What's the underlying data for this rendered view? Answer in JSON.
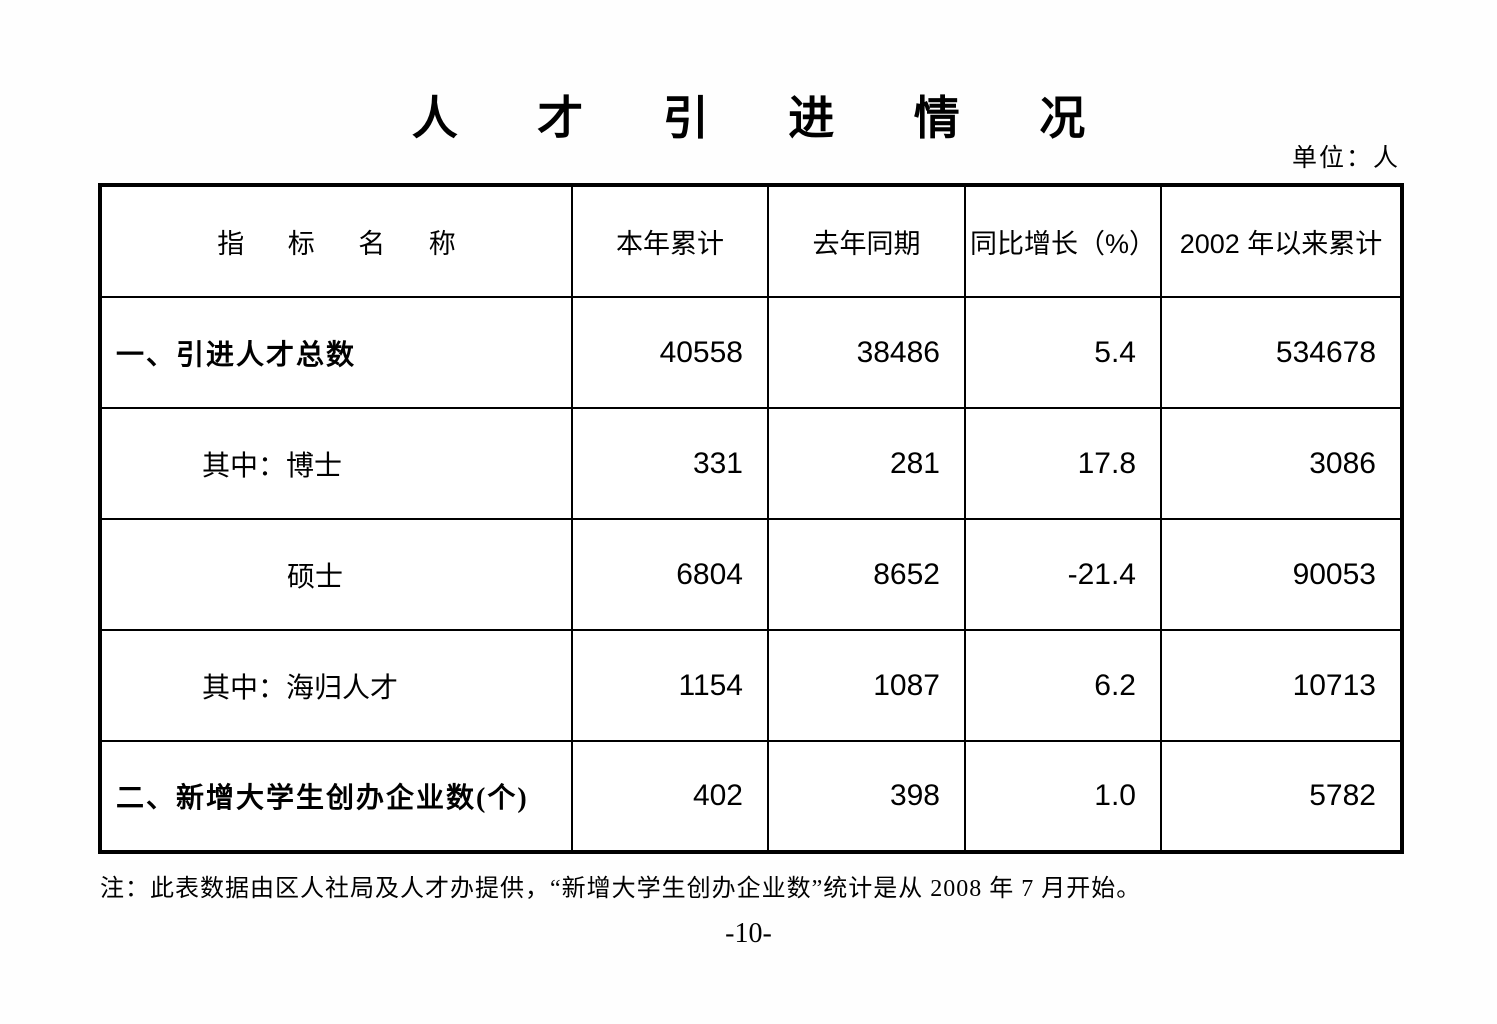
{
  "page": {
    "title": "人 才 引 进 情 况",
    "unit_label": "单位：人",
    "footnote": "注：此表数据由区人社局及人才办提供，“新增大学生创办企业数”统计是从 2008 年 7 月开始。",
    "page_number": "-10-"
  },
  "table": {
    "headers": [
      "指 标 名 称",
      "本年累计",
      "去年同期",
      "同比增长（%）",
      "2002 年以来累计"
    ],
    "rows": [
      {
        "label": "一、引进人才总数",
        "cells": [
          "40558",
          "38486",
          "5.4",
          "534678"
        ]
      },
      {
        "label": "其中：博士",
        "cells": [
          "331",
          "281",
          "17.8",
          "3086"
        ]
      },
      {
        "label": "硕士",
        "cells": [
          "6804",
          "8652",
          "-21.4",
          "90053"
        ]
      },
      {
        "label": "其中：海归人才",
        "cells": [
          "1154",
          "1087",
          "6.2",
          "10713"
        ]
      },
      {
        "label": "二、新增大学生创办企业数(个)",
        "cells": [
          "402",
          "398",
          "1.0",
          "5782"
        ]
      }
    ]
  }
}
